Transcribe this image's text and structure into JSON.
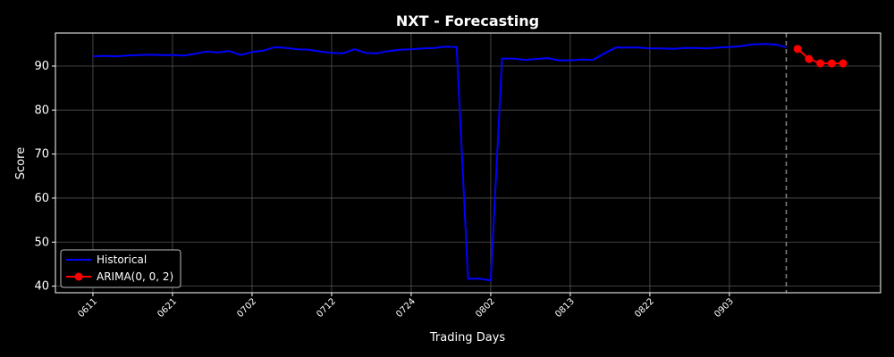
{
  "chart_data": {
    "type": "line",
    "title": "NXT - Forecasting",
    "xlabel": "Trading Days",
    "ylabel": "Score",
    "ylim": [
      38.5,
      97.5
    ],
    "yticks": [
      40,
      50,
      60,
      70,
      80,
      90
    ],
    "xticks": [
      "0611",
      "0621",
      "0702",
      "0712",
      "0724",
      "0802",
      "0813",
      "0822",
      "0903"
    ],
    "xtick_index": [
      0,
      7,
      14,
      21,
      28,
      35,
      42,
      49,
      56
    ],
    "xlim": [
      -3.3,
      69.3
    ],
    "grid": true,
    "legend_position": "lower-left",
    "forecast_start_index": 61,
    "series": [
      {
        "name": "Historical",
        "color": "#0000ff",
        "marker": "none",
        "x": [
          0,
          1,
          2,
          3,
          4,
          5,
          6,
          7,
          8,
          9,
          10,
          11,
          12,
          13,
          14,
          15,
          16,
          17,
          18,
          19,
          20,
          21,
          22,
          23,
          24,
          25,
          26,
          27,
          28,
          29,
          30,
          31,
          32,
          33,
          34,
          35,
          36,
          37,
          38,
          39,
          40,
          41,
          42,
          43,
          44,
          45,
          46,
          47,
          48,
          49,
          50,
          51,
          52,
          53,
          54,
          55,
          56,
          57,
          58,
          59,
          60,
          61
        ],
        "values": [
          92.2,
          92.3,
          92.2,
          92.4,
          92.5,
          92.6,
          92.5,
          92.5,
          92.4,
          92.8,
          93.3,
          93.1,
          93.4,
          92.5,
          93.2,
          93.5,
          94.3,
          94.1,
          93.8,
          93.7,
          93.3,
          93.0,
          92.9,
          93.8,
          93.0,
          92.9,
          93.4,
          93.7,
          93.8,
          94.0,
          94.1,
          94.4,
          94.3,
          41.7,
          41.7,
          41.3,
          91.7,
          91.7,
          91.4,
          91.6,
          91.8,
          91.3,
          91.3,
          91.5,
          91.4,
          92.9,
          94.2,
          94.2,
          94.2,
          94.0,
          94.0,
          93.9,
          94.1,
          94.1,
          94.0,
          94.2,
          94.3,
          94.5,
          94.9,
          95.0,
          94.9,
          94.3
        ]
      },
      {
        "name": "ARIMA(0, 0, 2)",
        "color": "#ff0000",
        "marker": "circle",
        "x": [
          62,
          63,
          64,
          65,
          66
        ],
        "values": [
          93.9,
          91.6,
          90.6,
          90.6,
          90.6
        ]
      }
    ]
  }
}
